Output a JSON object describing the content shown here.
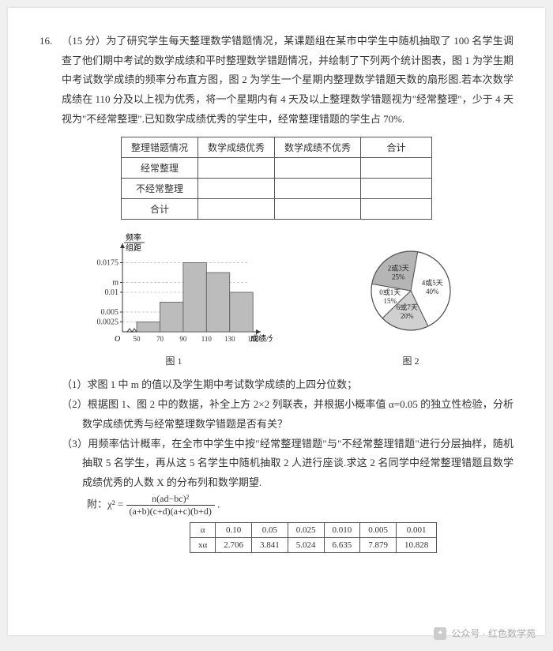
{
  "problem": {
    "number": "16.",
    "points": "（15 分）",
    "text_lines": [
      "为了研究学生每天整理数学错题情况，某课题组在某市中学生中随机抽取了 100 名学生调查了他们期中考试的数学成绩和平时整理数学错题情况，并绘制了下列两个统计图表，图 1 为学生期中考试数学成绩的频率分布直方图，图 2 为学生一个星期内整理数学错题天数的扇形图.若本次数学成绩在 110 分及以上视为优秀，将一个星期内有 4 天及以上整理数学错题视为\"经常整理\"，少于 4 天视为\"不经常整理\".已知数学成绩优秀的学生中，经常整理错题的学生占 70%."
    ]
  },
  "contingency_table": {
    "headers": [
      "整理错题情况",
      "数学成绩优秀",
      "数学成绩不优秀",
      "合计"
    ],
    "rows": [
      [
        "经常整理",
        "",
        "",
        ""
      ],
      [
        "不经常整理",
        "",
        "",
        ""
      ],
      [
        "合计",
        "",
        "",
        ""
      ]
    ]
  },
  "histogram": {
    "ylabel_top": "频率",
    "ylabel_bot": "组距",
    "xlabel": "成绩/分",
    "caption": "图 1",
    "yticks": [
      "0.0025",
      "0.005",
      "0.01",
      "m",
      "0.0175"
    ],
    "ytick_vals": [
      0.0025,
      0.005,
      0.01,
      0.0125,
      0.0175
    ],
    "xticks": [
      "50",
      "70",
      "90",
      "110",
      "130",
      "150"
    ],
    "bars": [
      {
        "x": 50,
        "h": 0.0025
      },
      {
        "x": 70,
        "h": 0.0075
      },
      {
        "x": 90,
        "h": 0.0175
      },
      {
        "x": 110,
        "h": 0.015
      },
      {
        "x": 130,
        "h": 0.01
      }
    ],
    "colors": {
      "bar_fill": "#bcbcbc",
      "bar_stroke": "#555",
      "axis": "#333",
      "grid_dash": "3,2"
    }
  },
  "pie": {
    "caption": "图 2",
    "slices": [
      {
        "label": "4或5天",
        "pct": "40%",
        "value": 40,
        "fill": "#ffffff"
      },
      {
        "label": "6或7天",
        "pct": "20%",
        "value": 20,
        "fill": "#d0d0d0"
      },
      {
        "label": "0或1天",
        "pct": "15%",
        "value": 15,
        "fill": "#ffffff"
      },
      {
        "label": "2或3天",
        "pct": "25%",
        "value": 25,
        "fill": "#b5b5b5"
      }
    ],
    "stroke": "#555"
  },
  "subq": {
    "q1": "（1）求图 1 中 m 的值以及学生期中考试数学成绩的上四分位数；",
    "q2": "（2）根据图 1、图 2 中的数据，补全上方 2×2 列联表，并根据小概率值 α=0.05 的独立性检验，分析数学成绩优秀与经常整理数学错题是否有关？",
    "q3": "（3）用频率估计概率，在全市中学生中按\"经常整理错题\"与\"不经常整理错题\"进行分层抽样，随机抽取 5 名学生，再从这 5 名学生中随机抽取 2 人进行座谈.求这 2 名同学中经常整理错题且数学成绩优秀的人数 X 的分布列和数学期望."
  },
  "formula": {
    "prefix": "附：χ² = ",
    "numer": "n(ad−bc)²",
    "denom": "(a+b)(c+d)(a+c)(b+d)",
    "suffix": "."
  },
  "chi_table": {
    "header": [
      "α",
      "0.10",
      "0.05",
      "0.025",
      "0.010",
      "0.005",
      "0.001"
    ],
    "row": [
      "xα",
      "2.706",
      "3.841",
      "5.024",
      "6.635",
      "7.879",
      "10.828"
    ]
  },
  "watermark": {
    "icon": "✓",
    "text": "公众号 · 红色数学苑"
  }
}
